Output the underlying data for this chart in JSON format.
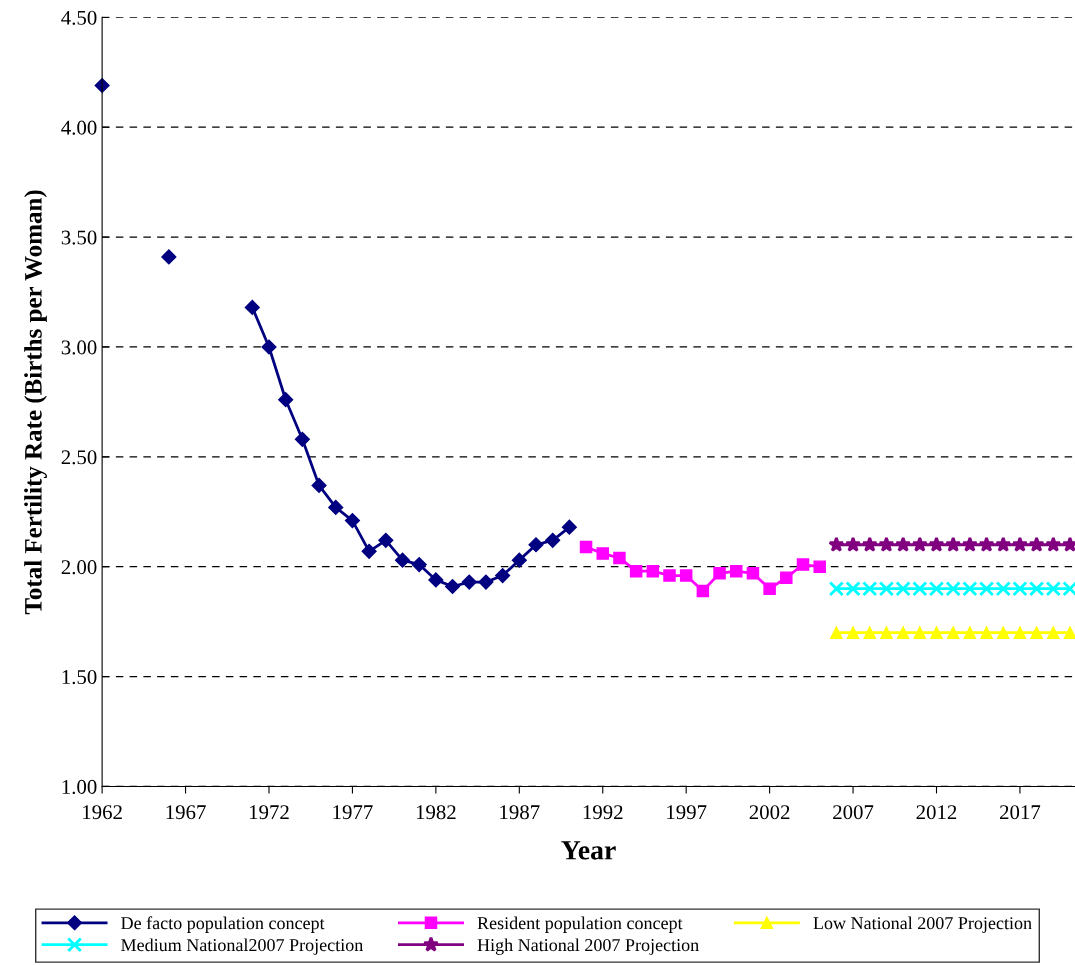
{
  "chart_data": {
    "type": "line",
    "xlabel": "Year",
    "ylabel": "Total Fertility Rate (Births per Woman)",
    "xlim": [
      1962,
      2020.3
    ],
    "xticks": [
      1962,
      1967,
      1972,
      1977,
      1982,
      1987,
      1992,
      1997,
      2002,
      2007,
      2012,
      2017
    ],
    "ylim": [
      1.0,
      4.5
    ],
    "yticks": [
      {
        "value": 1.0,
        "label": "1.00"
      },
      {
        "value": 1.5,
        "label": "1.50"
      },
      {
        "value": 2.0,
        "label": "2.00"
      },
      {
        "value": 2.5,
        "label": "2.50"
      },
      {
        "value": 3.0,
        "label": "3.00"
      },
      {
        "value": 3.5,
        "label": "3.50"
      },
      {
        "value": 4.0,
        "label": "4.00"
      },
      {
        "value": 4.5,
        "label": "4.50"
      }
    ],
    "grid": "y",
    "legend": "bottom",
    "series": [
      {
        "name": "De facto population concept",
        "color": "#000080",
        "marker": "diamond",
        "x": [
          1962,
          1963,
          1964,
          1965,
          1966,
          1967,
          1968,
          1969,
          1970,
          1971,
          1972,
          1973,
          1974,
          1975,
          1976,
          1977,
          1978,
          1979,
          1980,
          1981,
          1982,
          1983,
          1984,
          1985,
          1986,
          1987,
          1988,
          1989,
          1990
        ],
        "values": [
          4.19,
          null,
          null,
          null,
          3.41,
          null,
          null,
          null,
          null,
          3.18,
          3.0,
          2.76,
          2.58,
          2.37,
          2.27,
          2.21,
          2.07,
          2.12,
          2.03,
          2.01,
          1.94,
          1.91,
          1.93,
          1.93,
          1.96,
          2.03,
          2.1,
          2.12,
          2.18
        ]
      },
      {
        "name": "Resident population concept",
        "color": "#ff00ff",
        "marker": "square",
        "x": [
          1991,
          1992,
          1993,
          1994,
          1995,
          1996,
          1997,
          1998,
          1999,
          2000,
          2001,
          2002,
          2003,
          2004,
          2005
        ],
        "values": [
          2.09,
          2.06,
          2.04,
          1.98,
          1.98,
          1.96,
          1.96,
          1.89,
          1.97,
          1.98,
          1.97,
          1.9,
          1.95,
          2.01,
          2.0
        ]
      },
      {
        "name": "Low National 2007 Projection",
        "color": "#ffff00",
        "marker": "triangle",
        "x": [
          2006,
          2007,
          2008,
          2009,
          2010,
          2011,
          2012,
          2013,
          2014,
          2015,
          2016,
          2017,
          2018,
          2019,
          2020
        ],
        "values": [
          1.7,
          1.7,
          1.7,
          1.7,
          1.7,
          1.7,
          1.7,
          1.7,
          1.7,
          1.7,
          1.7,
          1.7,
          1.7,
          1.7,
          1.7
        ]
      },
      {
        "name": "Medium National2007 Projection",
        "color": "#00ffff",
        "marker": "cross",
        "x": [
          2006,
          2007,
          2008,
          2009,
          2010,
          2011,
          2012,
          2013,
          2014,
          2015,
          2016,
          2017,
          2018,
          2019,
          2020
        ],
        "values": [
          1.9,
          1.9,
          1.9,
          1.9,
          1.9,
          1.9,
          1.9,
          1.9,
          1.9,
          1.9,
          1.9,
          1.9,
          1.9,
          1.9,
          1.9
        ]
      },
      {
        "name": "High National 2007 Projection",
        "color": "#800080",
        "marker": "star",
        "x": [
          2006,
          2007,
          2008,
          2009,
          2010,
          2011,
          2012,
          2013,
          2014,
          2015,
          2016,
          2017,
          2018,
          2019,
          2020
        ],
        "values": [
          2.1,
          2.1,
          2.1,
          2.1,
          2.1,
          2.1,
          2.1,
          2.1,
          2.1,
          2.1,
          2.1,
          2.1,
          2.1,
          2.1,
          2.1
        ]
      }
    ]
  }
}
